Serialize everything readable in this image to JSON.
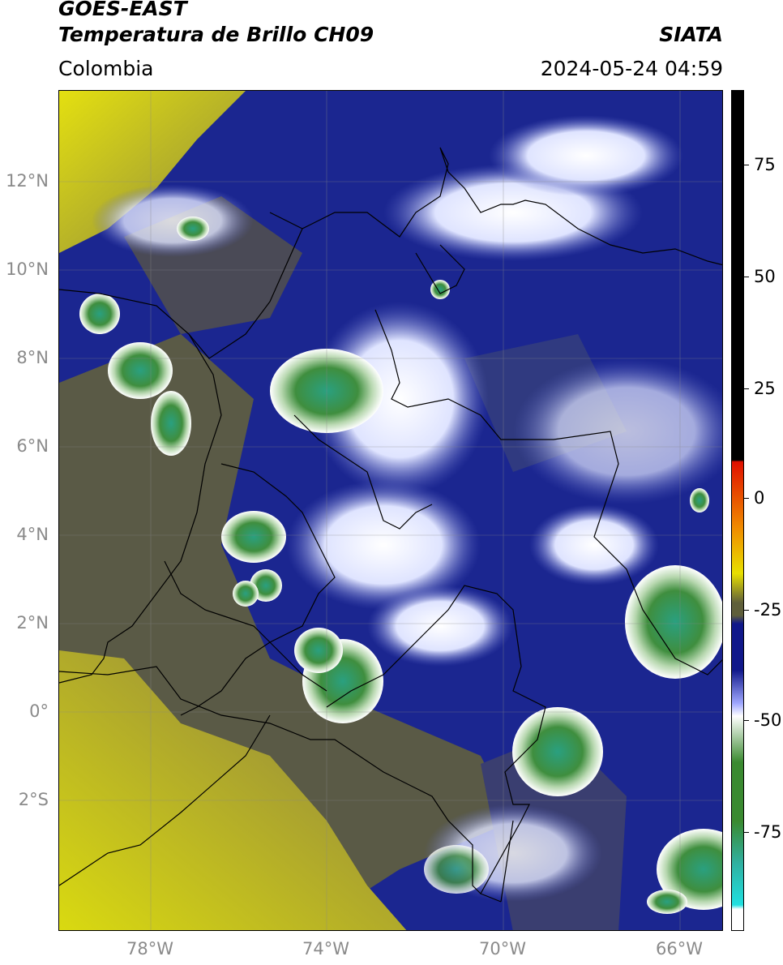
{
  "header": {
    "title_line1": "GOES-EAST",
    "title_line2": "Temperatura de Brillo CH09",
    "agency": "SIATA",
    "region": "Colombia",
    "timestamp": "2024-05-24 04:59"
  },
  "map": {
    "lat_ticks": [
      "12°N",
      "10°N",
      "8°N",
      "6°N",
      "4°N",
      "2°N",
      "0°",
      "2°S"
    ],
    "lon_ticks": [
      "78°W",
      "74°W",
      "70°W",
      "66°W"
    ]
  },
  "colorbar": {
    "ticks": [
      "75",
      "50",
      "25",
      "0",
      "-25",
      "-50",
      "-75"
    ],
    "colors": {
      "black": "#000000",
      "red": "#e01000",
      "orange": "#f08a00",
      "yellow": "#e8e000",
      "olive": "#5f5f3a",
      "navy": "#10188a",
      "white": "#ffffff",
      "green": "#3a8a30",
      "teal": "#30b0a0",
      "cyan": "#20e0e0"
    }
  },
  "colors": {
    "clear_sky": "#c8c020",
    "mid_level": "#5a5a46",
    "moist": "#1b2690",
    "high_cloud": "#e8ecff",
    "deep_convection": "#3f8e3e",
    "grid": "#888888",
    "borders": "#000000"
  }
}
